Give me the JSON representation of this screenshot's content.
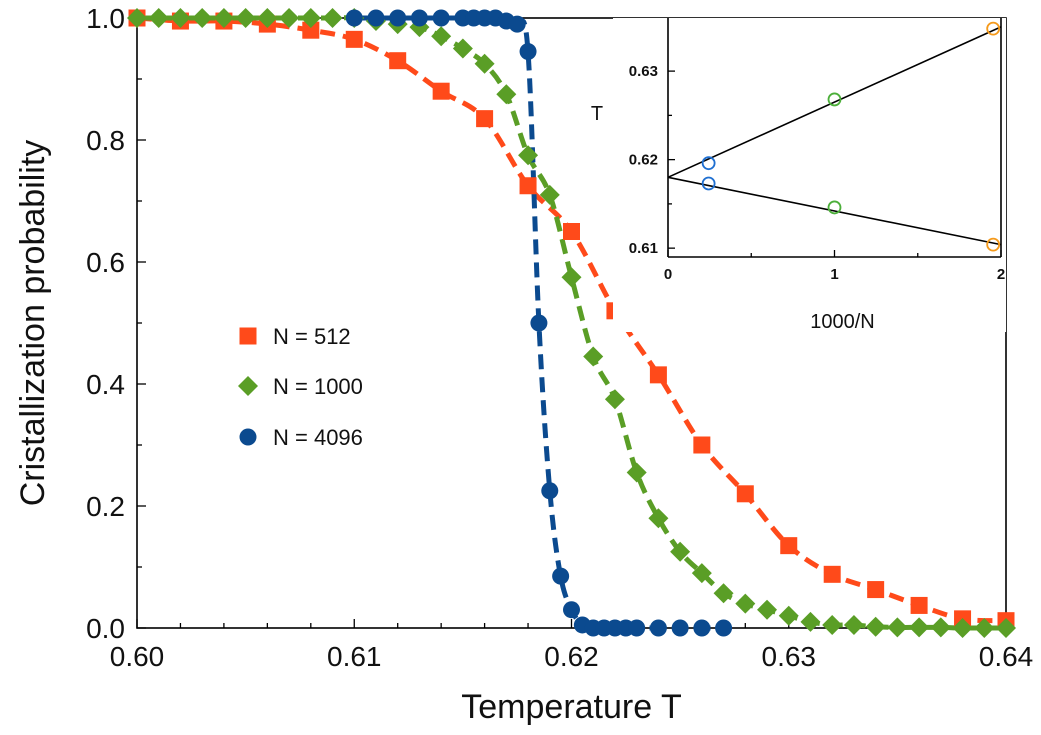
{
  "chart_data": [
    {
      "type": "line",
      "role": "main",
      "title": "",
      "xlabel": "Temperature  T",
      "ylabel": "Cristallization probability",
      "xlim": [
        0.6,
        0.64
      ],
      "ylim": [
        0.0,
        1.0
      ],
      "xticks": [
        0.6,
        0.61,
        0.62,
        0.63,
        0.64
      ],
      "xtick_labels": [
        "0.60",
        "0.61",
        "0.62",
        "0.63",
        "0.64"
      ],
      "yticks": [
        0.0,
        0.2,
        0.4,
        0.6,
        0.8,
        1.0
      ],
      "ytick_labels": [
        "0.0",
        "0.2",
        "0.4",
        "0.6",
        "0.8",
        "1.0"
      ],
      "grid": false,
      "legend_position": "center-left",
      "series": [
        {
          "name": "N = 512",
          "color": "#ff4a1a",
          "marker": "square",
          "fit_line": "dashed",
          "x": [
            0.6,
            0.602,
            0.604,
            0.606,
            0.608,
            0.61,
            0.612,
            0.614,
            0.616,
            0.618,
            0.62,
            0.622,
            0.624,
            0.626,
            0.628,
            0.63,
            0.632,
            0.634,
            0.636,
            0.638,
            0.64
          ],
          "y": [
            1.0,
            0.995,
            0.995,
            0.99,
            0.98,
            0.965,
            0.93,
            0.88,
            0.835,
            0.725,
            0.65,
            0.52,
            0.415,
            0.3,
            0.22,
            0.135,
            0.088,
            0.063,
            0.037,
            0.015,
            0.012
          ]
        },
        {
          "name": "N = 1000",
          "color": "#5a9e26",
          "marker": "diamond",
          "fit_line": "dashed",
          "x": [
            0.6,
            0.601,
            0.602,
            0.603,
            0.604,
            0.605,
            0.606,
            0.607,
            0.608,
            0.609,
            0.61,
            0.611,
            0.612,
            0.613,
            0.614,
            0.615,
            0.616,
            0.617,
            0.618,
            0.619,
            0.62,
            0.621,
            0.622,
            0.623,
            0.624,
            0.625,
            0.626,
            0.627,
            0.628,
            0.629,
            0.63,
            0.631,
            0.632,
            0.633,
            0.634,
            0.635,
            0.636,
            0.637,
            0.638,
            0.639,
            0.64
          ],
          "y": [
            1.0,
            1.0,
            1.0,
            1.0,
            1.0,
            1.0,
            1.0,
            1.0,
            1.0,
            1.0,
            1.0,
            0.995,
            0.99,
            0.985,
            0.97,
            0.95,
            0.925,
            0.875,
            0.775,
            0.71,
            0.575,
            0.445,
            0.375,
            0.255,
            0.18,
            0.125,
            0.09,
            0.057,
            0.04,
            0.03,
            0.02,
            0.01,
            0.005,
            0.005,
            0.002,
            0.001,
            0.001,
            0.001,
            0.0,
            0.0,
            0.0
          ]
        },
        {
          "name": "N = 4096",
          "color": "#0b4a8f",
          "marker": "circle",
          "fit_line": "dashed",
          "x": [
            0.61,
            0.611,
            0.612,
            0.613,
            0.614,
            0.615,
            0.6155,
            0.616,
            0.6165,
            0.617,
            0.6175,
            0.618,
            0.6185,
            0.619,
            0.6195,
            0.62,
            0.6205,
            0.621,
            0.6215,
            0.622,
            0.6225,
            0.623,
            0.624,
            0.625,
            0.626,
            0.627
          ],
          "y": [
            1.0,
            1.0,
            1.0,
            1.0,
            1.0,
            1.0,
            1.0,
            1.0,
            1.0,
            0.995,
            0.99,
            0.945,
            0.5,
            0.225,
            0.085,
            0.03,
            0.005,
            0.0,
            0.0,
            0.0,
            0.0,
            0.0,
            0.0,
            0.0,
            0.0,
            0.0
          ]
        }
      ]
    },
    {
      "type": "scatter",
      "role": "inset",
      "title": "",
      "xlabel": "1000/N",
      "ylabel": "T",
      "xlim": [
        0,
        2
      ],
      "ylim": [
        0.609,
        0.636
      ],
      "xticks": [
        0,
        1,
        2
      ],
      "xtick_labels": [
        "0",
        "1",
        "2"
      ],
      "yticks": [
        0.61,
        0.62,
        0.63
      ],
      "ytick_labels": [
        "0.61",
        "0.62",
        "0.63"
      ],
      "grid": false,
      "points": [
        {
          "x": 0.244,
          "y": 0.6196,
          "color": "#1f6fd1",
          "group": "upper"
        },
        {
          "x": 0.244,
          "y": 0.6173,
          "color": "#1f6fd1",
          "group": "lower"
        },
        {
          "x": 1.0,
          "y": 0.6268,
          "color": "#4caf3a",
          "group": "upper"
        },
        {
          "x": 1.0,
          "y": 0.6146,
          "color": "#4caf3a",
          "group": "lower"
        },
        {
          "x": 1.953,
          "y": 0.6348,
          "color": "#f59a1b",
          "group": "upper"
        },
        {
          "x": 1.953,
          "y": 0.6104,
          "color": "#f59a1b",
          "group": "lower"
        }
      ],
      "fit_lines": [
        {
          "name": "upper",
          "x": [
            0,
            2
          ],
          "y": [
            0.618,
            0.635
          ],
          "color": "#000000"
        },
        {
          "name": "lower",
          "x": [
            0,
            2
          ],
          "y": [
            0.618,
            0.6104
          ],
          "color": "#000000"
        }
      ]
    }
  ]
}
